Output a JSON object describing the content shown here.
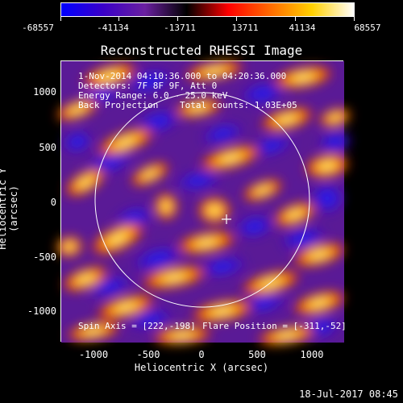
{
  "colorbar": {
    "ticks": [
      "-68557",
      "-41134",
      "-13711",
      "13711",
      "41134",
      "68557"
    ],
    "colors": [
      "#0000ff",
      "#3a00c8",
      "#6a20a0",
      "#000000",
      "#ff0000",
      "#ff6a00",
      "#ffd000",
      "#ffffff"
    ]
  },
  "plot": {
    "title": "Reconstructed RHESSI Image",
    "xlabel": "Heliocentric X (arcsec)",
    "ylabel": "Heliocentric Y (arcsec)",
    "xticks": [
      "-1000",
      "-500",
      "0",
      "500",
      "1000"
    ],
    "yticks": [
      "1000",
      "500",
      "0",
      "-500",
      "-1000"
    ],
    "info": {
      "time": "1-Nov-2014 04:10:36.000 to 04:20:36.000",
      "detectors": "Detectors: 7F 8F 9F, Att 0",
      "energy": "Energy Range: 6.0 - 25.0 keV",
      "method": "Back Projection",
      "counts": "Total counts: 1.03E+05",
      "spin_axis": "Spin Axis = [222,-198]",
      "flare_pos": "Flare Position = [-311,-52]"
    }
  },
  "footer": {
    "date": "18-Jul-2017 08:45"
  }
}
